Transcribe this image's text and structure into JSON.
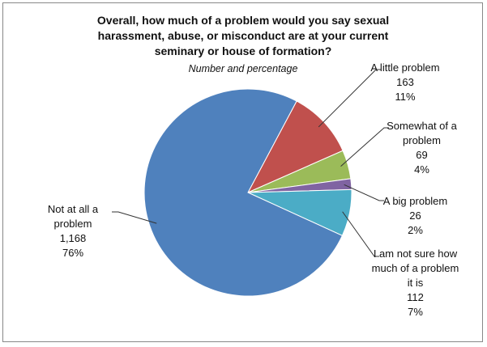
{
  "chart_data": {
    "type": "pie",
    "title": "Overall, how much of a problem would you say sexual harassment, abuse, or misconduct are at your current seminary or house of formation?",
    "subtitle": "Number and percentage",
    "categories": [
      "A little problem",
      "Somewhat of a problem",
      "A big problem",
      "I am not sure how much of a problem it is",
      "Not at all a problem"
    ],
    "values": [
      163,
      69,
      26,
      112,
      1168
    ],
    "value_labels": [
      "163",
      "69",
      "26",
      "112",
      "1,168"
    ],
    "percent_labels": [
      "11%",
      "4%",
      "2%",
      "7%",
      "76%"
    ],
    "colors": [
      "#c0504d",
      "#9bbb59",
      "#8064a2",
      "#4bacc6",
      "#4f81bd"
    ]
  }
}
